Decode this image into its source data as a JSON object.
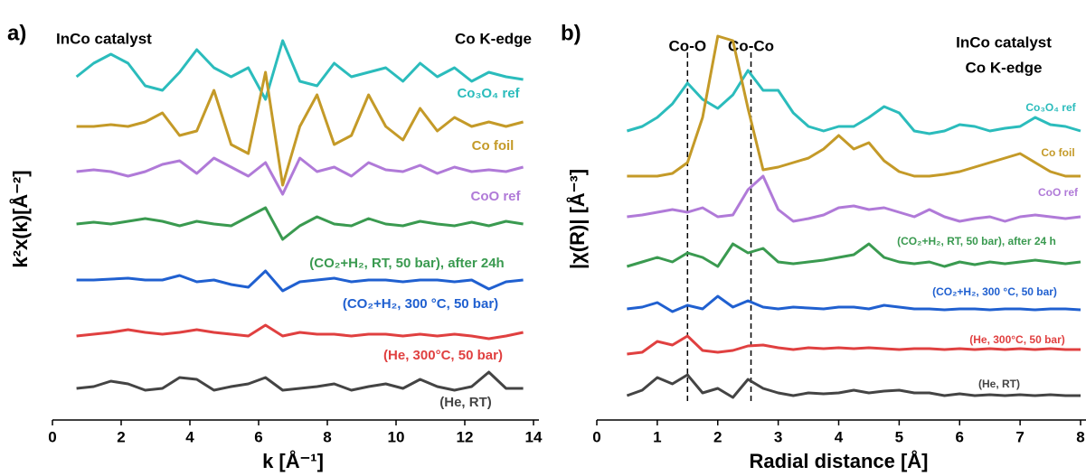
{
  "chart_data": [
    {
      "type": "line",
      "panel": "a)",
      "xlabel": "k [Å⁻¹]",
      "ylabel": "k²x(k)[Å⁻²]",
      "texts": [
        "InCo catalyst",
        "Co K-edge"
      ],
      "xlim": [
        0,
        14
      ],
      "xticks": [
        0,
        2,
        4,
        6,
        8,
        10,
        12,
        14
      ],
      "ylim": [
        0,
        445
      ],
      "x": [
        0.7,
        1.2,
        1.7,
        2.2,
        2.7,
        3.2,
        3.7,
        4.2,
        4.7,
        5.2,
        5.7,
        6.2,
        6.7,
        7.2,
        7.7,
        8.2,
        8.7,
        9.2,
        9.7,
        10.2,
        10.7,
        11.2,
        11.7,
        12.2,
        12.7,
        13.2,
        13.7
      ],
      "series": [
        {
          "name": "Co₃O₄ ref",
          "color": "#2bbcbc",
          "values": [
            380,
            395,
            405,
            395,
            370,
            365,
            385,
            410,
            390,
            380,
            390,
            355,
            420,
            375,
            370,
            395,
            380,
            385,
            390,
            375,
            395,
            380,
            390,
            375,
            385,
            380,
            377
          ]
        },
        {
          "name": "Co foil",
          "color": "#c49a28",
          "values": [
            325,
            325,
            327,
            325,
            330,
            340,
            315,
            320,
            365,
            305,
            295,
            385,
            260,
            325,
            360,
            305,
            315,
            360,
            325,
            310,
            345,
            320,
            335,
            325,
            330,
            325,
            330
          ]
        },
        {
          "name": "CoO ref",
          "color": "#b07ad8",
          "values": [
            275,
            277,
            275,
            270,
            275,
            283,
            287,
            273,
            290,
            280,
            270,
            285,
            250,
            290,
            275,
            280,
            270,
            285,
            277,
            275,
            282,
            273,
            280,
            275,
            277,
            275,
            280
          ]
        },
        {
          "name": "(CO₂+H₂, RT, 50 bar), after 24h",
          "color": "#3a9a50",
          "values": [
            217,
            219,
            217,
            220,
            223,
            220,
            215,
            220,
            217,
            215,
            225,
            235,
            200,
            215,
            225,
            217,
            215,
            223,
            217,
            215,
            220,
            217,
            215,
            219,
            215,
            220,
            217
          ]
        },
        {
          "name": "(CO₂+H₂, 300 °C, 50 bar)",
          "color": "#2060d0",
          "values": [
            155,
            155,
            156,
            157,
            155,
            155,
            160,
            153,
            155,
            150,
            147,
            165,
            143,
            153,
            155,
            157,
            153,
            155,
            155,
            153,
            155,
            155,
            153,
            155,
            145,
            153,
            155
          ]
        },
        {
          "name": "(He, 300°C, 50 bar)",
          "color": "#e04040",
          "values": [
            93,
            95,
            97,
            100,
            97,
            95,
            97,
            100,
            97,
            95,
            93,
            105,
            93,
            97,
            95,
            95,
            93,
            95,
            95,
            93,
            95,
            93,
            95,
            93,
            90,
            93,
            97
          ]
        },
        {
          "name": "(He, RT)",
          "color": "#444444",
          "values": [
            35,
            37,
            43,
            40,
            33,
            35,
            47,
            45,
            33,
            37,
            40,
            47,
            33,
            35,
            37,
            40,
            33,
            37,
            40,
            35,
            45,
            37,
            33,
            37,
            53,
            35,
            35
          ]
        }
      ]
    },
    {
      "type": "line",
      "panel": "b)",
      "xlabel": "Radial distance [Å]",
      "ylabel": "|χ(R)| [Å⁻³]",
      "texts": [
        "InCo catalyst",
        "Co K-edge"
      ],
      "annotations": [
        {
          "text": "Co-O",
          "x": 1.5
        },
        {
          "text": "Co-Co",
          "x": 2.55
        }
      ],
      "xlim": [
        0,
        8
      ],
      "xticks": [
        0,
        1,
        2,
        3,
        4,
        5,
        6,
        7,
        8
      ],
      "ylim": [
        0,
        445
      ],
      "x": [
        0.5,
        0.75,
        1,
        1.25,
        1.5,
        1.75,
        2,
        2.25,
        2.5,
        2.75,
        3,
        3.25,
        3.5,
        3.75,
        4,
        4.25,
        4.5,
        4.75,
        5,
        5.25,
        5.5,
        5.75,
        6,
        6.25,
        6.5,
        6.75,
        7,
        7.25,
        7.5,
        7.75,
        8
      ],
      "series": [
        {
          "name": "Co₃O₄ ref",
          "color": "#2bbcbc",
          "values": [
            320,
            325,
            335,
            350,
            373,
            355,
            345,
            360,
            387,
            365,
            365,
            340,
            325,
            320,
            325,
            325,
            335,
            347,
            340,
            320,
            317,
            320,
            327,
            325,
            320,
            323,
            325,
            335,
            327,
            325,
            320
          ]
        },
        {
          "name": "Co foil",
          "color": "#c49a28",
          "values": [
            270,
            270,
            270,
            273,
            285,
            335,
            425,
            420,
            345,
            277,
            280,
            285,
            290,
            300,
            315,
            300,
            307,
            287,
            275,
            270,
            270,
            272,
            275,
            280,
            285,
            290,
            295,
            285,
            275,
            270,
            270
          ]
        },
        {
          "name": "CoO ref",
          "color": "#b07ad8",
          "values": [
            225,
            227,
            230,
            233,
            230,
            235,
            225,
            227,
            255,
            270,
            233,
            220,
            223,
            227,
            235,
            237,
            233,
            235,
            230,
            225,
            233,
            225,
            220,
            223,
            225,
            220,
            225,
            227,
            225,
            223,
            225
          ]
        },
        {
          "name": "(CO₂+H₂, RT, 50 bar), after 24 h",
          "color": "#3a9a50",
          "values": [
            170,
            175,
            180,
            175,
            185,
            180,
            170,
            195,
            185,
            190,
            175,
            173,
            175,
            177,
            180,
            183,
            195,
            180,
            175,
            173,
            175,
            170,
            175,
            172,
            175,
            173,
            175,
            177,
            175,
            173,
            175
          ]
        },
        {
          "name": "(CO₂+H₂, 300 °C, 50 bar)",
          "color": "#2060d0",
          "values": [
            123,
            125,
            130,
            120,
            127,
            123,
            137,
            125,
            132,
            125,
            123,
            125,
            124,
            123,
            125,
            125,
            123,
            127,
            125,
            123,
            123,
            122,
            123,
            123,
            122,
            123,
            123,
            122,
            123,
            123,
            122
          ]
        },
        {
          "name": "(He, 300°C, 50 bar)",
          "color": "#e04040",
          "values": [
            73,
            75,
            87,
            83,
            93,
            77,
            75,
            77,
            82,
            83,
            80,
            78,
            80,
            79,
            80,
            79,
            80,
            79,
            78,
            79,
            79,
            78,
            79,
            78,
            79,
            78,
            79,
            78,
            79,
            78,
            78
          ]
        },
        {
          "name": "(He, RT)",
          "color": "#444444",
          "values": [
            27,
            33,
            47,
            40,
            50,
            30,
            35,
            25,
            45,
            35,
            30,
            27,
            30,
            29,
            30,
            33,
            30,
            32,
            33,
            30,
            30,
            27,
            29,
            27,
            28,
            27,
            28,
            27,
            28,
            27,
            27
          ]
        }
      ]
    }
  ]
}
